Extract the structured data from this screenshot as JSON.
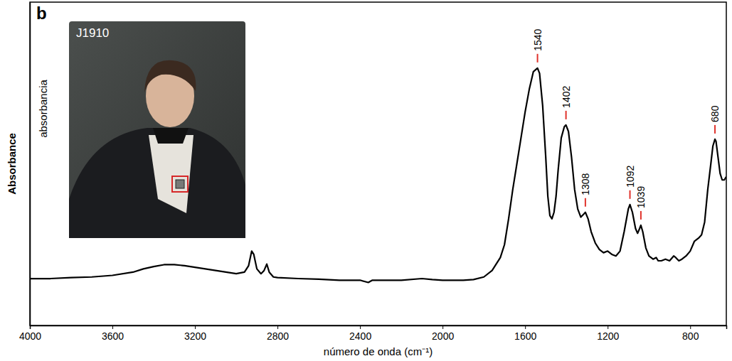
{
  "chart_data": {
    "type": "line",
    "panel": "b",
    "inset_label": "J1910",
    "y_label": "Absorbance",
    "y_label_secondary": "absorbancia",
    "x_label": "número de onda (cm⁻¹)",
    "color": "#000000",
    "xlim": [
      4000,
      625
    ],
    "ylim": [
      0,
      1
    ],
    "xticks": [
      4000,
      3600,
      3200,
      2800,
      2400,
      2000,
      1600,
      1200,
      800
    ],
    "tick_labels": "x",
    "grid": false,
    "annotations": [
      {
        "x": 1540,
        "text": "1540"
      },
      {
        "x": 1402,
        "text": "1402"
      },
      {
        "x": 1308,
        "text": "1308"
      },
      {
        "x": 1092,
        "text": "1092"
      },
      {
        "x": 1039,
        "text": "1039"
      },
      {
        "x": 680,
        "text": "680"
      }
    ],
    "x": [
      4000,
      3900,
      3800,
      3700,
      3600,
      3500,
      3450,
      3400,
      3350,
      3300,
      3250,
      3200,
      3150,
      3100,
      3050,
      3000,
      2960,
      2940,
      2925,
      2915,
      2900,
      2880,
      2865,
      2852,
      2840,
      2820,
      2800,
      2700,
      2600,
      2500,
      2400,
      2360,
      2340,
      2200,
      2100,
      2050,
      2000,
      1900,
      1850,
      1800,
      1760,
      1720,
      1700,
      1680,
      1660,
      1640,
      1620,
      1600,
      1580,
      1560,
      1540,
      1530,
      1515,
      1500,
      1490,
      1480,
      1470,
      1460,
      1450,
      1440,
      1425,
      1410,
      1402,
      1390,
      1375,
      1360,
      1345,
      1330,
      1315,
      1308,
      1295,
      1280,
      1260,
      1240,
      1220,
      1200,
      1180,
      1160,
      1140,
      1120,
      1100,
      1092,
      1080,
      1065,
      1055,
      1045,
      1039,
      1030,
      1015,
      1000,
      980,
      965,
      955,
      940,
      920,
      900,
      880,
      870,
      855,
      840,
      820,
      800,
      780,
      760,
      745,
      730,
      715,
      700,
      690,
      680,
      675,
      665,
      655,
      645,
      635,
      625
    ],
    "values": [
      0.145,
      0.145,
      0.148,
      0.15,
      0.155,
      0.165,
      0.175,
      0.182,
      0.188,
      0.188,
      0.185,
      0.18,
      0.175,
      0.17,
      0.165,
      0.16,
      0.165,
      0.185,
      0.23,
      0.22,
      0.175,
      0.16,
      0.17,
      0.19,
      0.165,
      0.15,
      0.148,
      0.145,
      0.143,
      0.14,
      0.14,
      0.133,
      0.14,
      0.14,
      0.145,
      0.142,
      0.14,
      0.14,
      0.142,
      0.15,
      0.17,
      0.21,
      0.25,
      0.33,
      0.42,
      0.5,
      0.58,
      0.66,
      0.73,
      0.785,
      0.796,
      0.78,
      0.68,
      0.52,
      0.4,
      0.34,
      0.33,
      0.35,
      0.4,
      0.48,
      0.58,
      0.615,
      0.62,
      0.6,
      0.52,
      0.42,
      0.36,
      0.335,
      0.345,
      0.35,
      0.33,
      0.29,
      0.255,
      0.235,
      0.225,
      0.23,
      0.22,
      0.215,
      0.23,
      0.29,
      0.36,
      0.374,
      0.35,
      0.3,
      0.285,
      0.3,
      0.31,
      0.29,
      0.24,
      0.215,
      0.205,
      0.21,
      0.2,
      0.2,
      0.205,
      0.2,
      0.215,
      0.21,
      0.2,
      0.205,
      0.215,
      0.23,
      0.26,
      0.27,
      0.28,
      0.32,
      0.42,
      0.5,
      0.555,
      0.576,
      0.57,
      0.52,
      0.47,
      0.45,
      0.45,
      0.46
    ]
  }
}
